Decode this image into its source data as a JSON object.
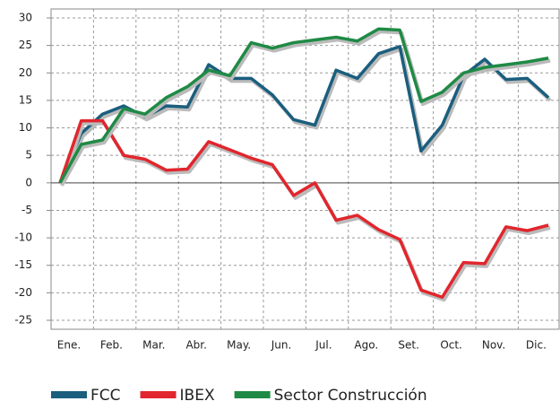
{
  "chart_data": {
    "type": "line",
    "categories": [
      "Ene.",
      null,
      "Feb.",
      null,
      "Mar.",
      null,
      "Abr.",
      null,
      "May.",
      null,
      "Jun.",
      null,
      "Jul.",
      null,
      "Ago.",
      null,
      "Set.",
      null,
      "Oct.",
      null,
      "Nov.",
      null,
      "Dic.",
      null
    ],
    "series": [
      {
        "name": "FCC",
        "color": "#1b5e7e",
        "values": [
          0,
          9,
          12.5,
          14,
          12,
          14,
          13.8,
          21.5,
          19,
          19,
          16,
          11.5,
          10.5,
          20.5,
          19,
          23.5,
          24.8,
          5.8,
          10.5,
          19.5,
          22.5,
          18.8,
          19,
          15.5
        ]
      },
      {
        "name": "IBEX",
        "color": "#e1262d",
        "values": [
          0,
          11.3,
          11.3,
          5,
          4.3,
          2.3,
          2.5,
          7.5,
          6,
          4.5,
          3.3,
          -2.3,
          0,
          -6.8,
          -5.9,
          -8.5,
          -10.3,
          -19.5,
          -20.8,
          -14.5,
          -14.7,
          -8,
          -8.7,
          -7.7
        ]
      },
      {
        "name": "Sector Construcción",
        "color": "#1f8a45",
        "values": [
          0,
          7,
          7.8,
          13.5,
          12.5,
          15.5,
          17.5,
          20.5,
          19.5,
          25.5,
          24.5,
          25.5,
          26,
          26.5,
          25.8,
          28,
          27.8,
          14.8,
          16.5,
          20,
          21,
          21.5,
          22,
          22.7
        ]
      }
    ],
    "ylim": [
      -25,
      30
    ],
    "yticks": [
      -25,
      -20,
      -15,
      -10,
      -5,
      0,
      5,
      10,
      15,
      20,
      25,
      30
    ],
    "grid": true
  }
}
